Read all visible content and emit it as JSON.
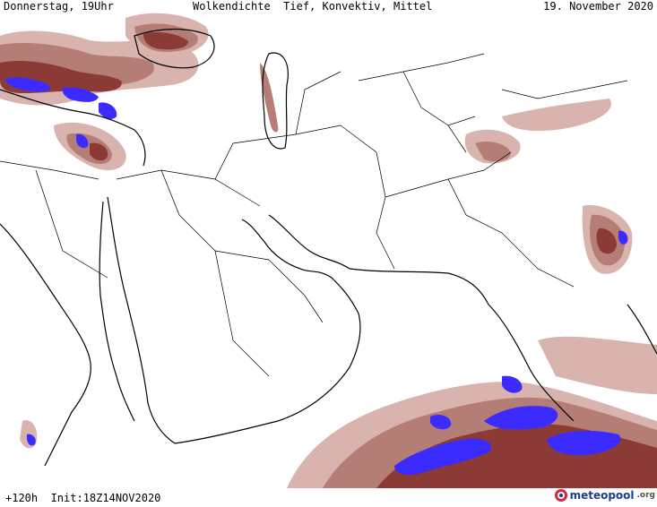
{
  "header": {
    "weekday_time": "Donnerstag, 19Uhr",
    "title": "Wolkendichte  Tief, Konvektiv, Mittel",
    "date": "19. November 2020"
  },
  "footer": {
    "run_info": "+120h  Init:18Z14NOV2020"
  },
  "brand": {
    "name": "meteopool",
    "tld": ".org",
    "colors": {
      "red": "#d7263d",
      "blue": "#1f3d8f"
    }
  },
  "legend_colors": {
    "light": "#d9b3ad",
    "medium": "#b47d76",
    "dark": "#8c3a36",
    "dense": "#3b2bff"
  },
  "map": {
    "background": "#ffffff",
    "border_color": "#000000"
  }
}
